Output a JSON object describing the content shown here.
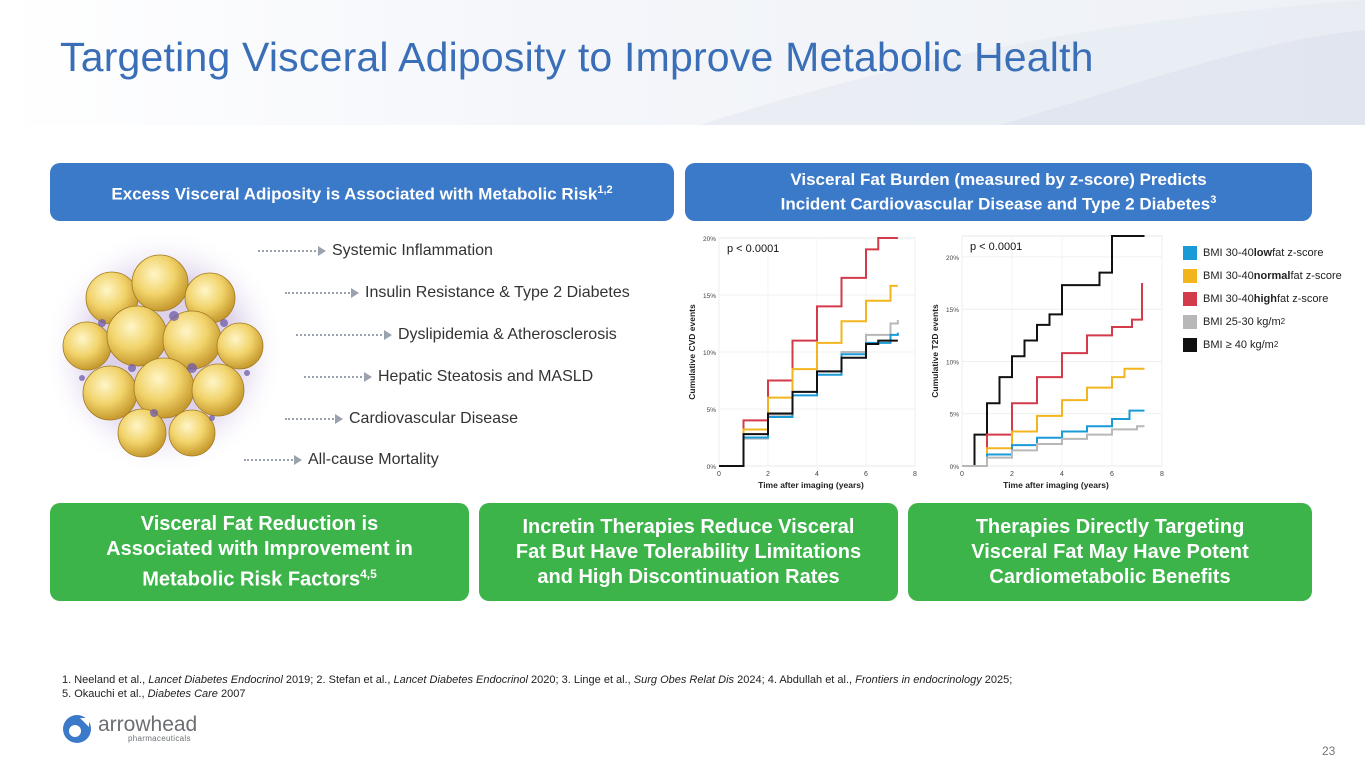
{
  "title": "Targeting Visceral Adiposity to Improve Metabolic Health",
  "banner_left": {
    "text": "Excess Visceral Adiposity is Associated with Metabolic Risk",
    "sup": "1,2"
  },
  "banner_right": {
    "line1": "Visceral Fat Burden (measured by z-score) Predicts",
    "line2": "Incident Cardiovascular Disease and Type 2 Diabetes",
    "sup": "3"
  },
  "risks": [
    "Systemic Inflammation",
    "Insulin Resistance & Type 2 Diabetes",
    "Dyslipidemia & Atherosclerosis",
    "Hepatic Steatosis and MASLD",
    "Cardiovascular Disease",
    "All-cause Mortality"
  ],
  "colors": {
    "title_blue": "#3a6fb8",
    "banner_blue": "#3b79c9",
    "green": "#3cb44a",
    "low": "#1a9bd7",
    "normal": "#f2b51e",
    "high": "#d33a4a",
    "bmi_25_30": "#b8b8b8",
    "bmi_40": "#111111"
  },
  "chart_data": [
    {
      "type": "line",
      "step": true,
      "title": "",
      "annotation": "p < 0.0001",
      "xlabel": "Time after imaging (years)",
      "ylabel": "Cumulative CVD events",
      "xlim": [
        0,
        8
      ],
      "ylim": [
        0,
        20
      ],
      "x_ticks": [
        "0",
        "2",
        "4",
        "6",
        "8"
      ],
      "y_ticks": [
        "0%",
        "5%",
        "10%",
        "15%",
        "20%"
      ],
      "series": [
        {
          "name": "BMI 30-40 high fat z-score",
          "color": "high",
          "x": [
            0,
            1,
            2,
            3,
            4,
            5,
            6,
            6.5,
            7.3
          ],
          "y": [
            0,
            4,
            7.5,
            11,
            14,
            16.5,
            19,
            20,
            20
          ]
        },
        {
          "name": "BMI 30-40 normal fat z-score",
          "color": "normal",
          "x": [
            0,
            1,
            2,
            3,
            4,
            5,
            6,
            7,
            7.3
          ],
          "y": [
            0,
            3.2,
            6,
            8.5,
            10.8,
            12.7,
            14.5,
            15.8,
            15.8
          ]
        },
        {
          "name": "BMI 25-30 kg/m2",
          "color": "bmi_25_30",
          "x": [
            0,
            1,
            2,
            3,
            4,
            5,
            6,
            7,
            7.3
          ],
          "y": [
            0,
            2.4,
            4.5,
            6.5,
            8.3,
            10,
            11.5,
            12.5,
            12.8
          ]
        },
        {
          "name": "BMI 30-40 low fat z-score",
          "color": "low",
          "x": [
            0,
            1,
            2,
            3,
            4,
            5,
            6,
            7,
            7.3
          ],
          "y": [
            0,
            2.5,
            4.3,
            6.2,
            8,
            9.8,
            10.8,
            11.5,
            11.7
          ]
        },
        {
          "name": "BMI ≥ 40 kg/m2",
          "color": "bmi_40",
          "x": [
            0,
            1,
            2,
            3,
            4,
            5,
            6,
            6.5,
            7.3
          ],
          "y": [
            0,
            2.8,
            4.6,
            6.5,
            8.3,
            9.5,
            10.7,
            11,
            11
          ]
        }
      ]
    },
    {
      "type": "line",
      "step": true,
      "title": "",
      "annotation": "p < 0.0001",
      "xlabel": "Time after imaging (years)",
      "ylabel": "Cumulative T2D events",
      "xlim": [
        0,
        8
      ],
      "ylim": [
        0,
        22
      ],
      "x_ticks": [
        "0",
        "2",
        "4",
        "6",
        "8"
      ],
      "y_ticks": [
        "0%",
        "5%",
        "10%",
        "15%",
        "20%"
      ],
      "series": [
        {
          "name": "BMI ≥ 40 kg/m2",
          "color": "bmi_40",
          "x": [
            0,
            0.5,
            1,
            1.5,
            2,
            2.5,
            3,
            3.5,
            4,
            5,
            5.5,
            6,
            6.3,
            7.3
          ],
          "y": [
            0,
            3,
            6,
            8.5,
            10.5,
            12,
            13.5,
            14.5,
            17.3,
            17.3,
            18.5,
            22,
            22,
            22
          ]
        },
        {
          "name": "BMI 30-40 high fat z-score",
          "color": "high",
          "x": [
            0,
            1,
            2,
            3,
            4,
            5,
            6,
            6.8,
            7.2
          ],
          "y": [
            0,
            3,
            6,
            8.5,
            10.8,
            12.5,
            13.3,
            14,
            17.5
          ]
        },
        {
          "name": "BMI 30-40 normal fat z-score",
          "color": "normal",
          "x": [
            0,
            1,
            2,
            3,
            4,
            5,
            6,
            6.5,
            7.3
          ],
          "y": [
            0,
            1.7,
            3.3,
            4.8,
            6.3,
            7.5,
            8.5,
            9.3,
            9.3
          ]
        },
        {
          "name": "BMI 30-40 low fat z-score",
          "color": "low",
          "x": [
            0,
            1,
            2,
            3,
            4,
            5,
            6,
            6.7,
            7.3
          ],
          "y": [
            0,
            1.1,
            2,
            2.7,
            3.3,
            3.8,
            4.5,
            5.3,
            5.3
          ]
        },
        {
          "name": "BMI 25-30 kg/m2",
          "color": "bmi_25_30",
          "x": [
            0,
            1,
            2,
            3,
            4,
            5,
            6,
            7,
            7.3
          ],
          "y": [
            0,
            0.8,
            1.5,
            2.1,
            2.6,
            3,
            3.5,
            3.8,
            3.8
          ]
        }
      ]
    }
  ],
  "legend": [
    {
      "color": "low",
      "prefix": "BMI 30-40 ",
      "bold": "low",
      "suffix": " fat z-score"
    },
    {
      "color": "normal",
      "prefix": "BMI 30-40 ",
      "bold": "normal",
      "suffix": " fat z-score"
    },
    {
      "color": "high",
      "prefix": "BMI 30-40 ",
      "bold": "high",
      "suffix": " fat z-score"
    },
    {
      "color": "bmi_25_30",
      "prefix": "BMI 25-30 kg/m",
      "bold": "",
      "suffix": "",
      "sup": "2"
    },
    {
      "color": "bmi_40",
      "prefix": "BMI ≥ 40 kg/m",
      "bold": "",
      "suffix": "",
      "sup": "2"
    }
  ],
  "green_boxes": [
    {
      "line1": "Visceral Fat Reduction is",
      "line2": "Associated with Improvement in",
      "line3": "Metabolic Risk Factors",
      "sup": "4,5"
    },
    {
      "line1": "Incretin Therapies Reduce Visceral",
      "line2": "Fat But Have Tolerability Limitations",
      "line3": "and High Discontinuation Rates"
    },
    {
      "line1": "Therapies Directly Targeting",
      "line2": "Visceral Fat May Have Potent",
      "line3": "Cardiometabolic Benefits"
    }
  ],
  "footnote": {
    "r1_a": "1. Neeland et al., ",
    "r1_a_i": "Lancet Diabetes Endocrinol",
    "r1_b": " 2019; 2. Stefan et al., ",
    "r1_b_i": "Lancet Diabetes Endocrinol",
    "r1_c": " 2020; 3. Linge et al., ",
    "r1_c_i": "Surg Obes Relat Dis",
    "r1_d": " 2024; 4. Abdullah et al., ",
    "r1_d_i": "Frontiers in endocrinology",
    "r1_e": " 2025;",
    "r2_a": "5. Okauchi et al., ",
    "r2_a_i": "Diabetes Care",
    "r2_b": " 2007"
  },
  "logo": {
    "word": "arrowhead",
    "sub": "pharmaceuticals"
  },
  "page_number": "23"
}
